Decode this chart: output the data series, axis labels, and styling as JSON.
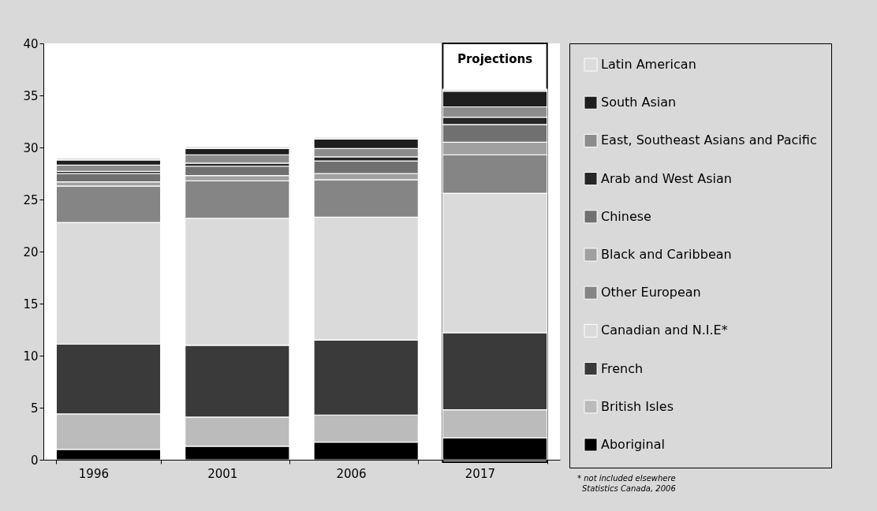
{
  "chart_data": {
    "type": "bar",
    "stacked": true,
    "categories": [
      "1996",
      "2001",
      "2006",
      "2017"
    ],
    "series": [
      {
        "name": "Aboriginal",
        "color": "#000000",
        "values": [
          1.0,
          1.3,
          1.7,
          2.1
        ]
      },
      {
        "name": "British Isles",
        "color": "#bbbbbb",
        "values": [
          3.4,
          2.8,
          2.6,
          2.7
        ]
      },
      {
        "name": "French",
        "color": "#3a3a3a",
        "values": [
          6.7,
          6.9,
          7.2,
          7.4
        ]
      },
      {
        "name": "Canadian and N.I.E*",
        "color": "#dadada",
        "values": [
          11.7,
          12.2,
          11.8,
          13.4
        ]
      },
      {
        "name": "Other European",
        "color": "#858585",
        "values": [
          3.5,
          3.6,
          3.6,
          3.7
        ]
      },
      {
        "name": "Black and Caribbean",
        "color": "#a0a0a0",
        "values": [
          0.4,
          0.5,
          0.6,
          1.2
        ]
      },
      {
        "name": "Chinese",
        "color": "#707070",
        "values": [
          0.8,
          0.9,
          1.2,
          1.7
        ]
      },
      {
        "name": "Arab and West Asian",
        "color": "#262626",
        "values": [
          0.2,
          0.3,
          0.4,
          0.7
        ]
      },
      {
        "name": "East, Southeast Asians and Pacific",
        "color": "#8c8c8c",
        "values": [
          0.6,
          0.8,
          0.8,
          1.0
        ]
      },
      {
        "name": "South Asian",
        "color": "#1e1e1e",
        "values": [
          0.5,
          0.6,
          0.9,
          1.5
        ]
      },
      {
        "name": "Latin American",
        "color": "#dcdcdc",
        "values": [
          0.2,
          0.2,
          0.2,
          0.2
        ]
      }
    ],
    "ylim": [
      0,
      40
    ],
    "yticks": [
      0,
      5,
      10,
      15,
      20,
      25,
      30,
      35,
      40
    ],
    "grid": false,
    "legend": "right",
    "bands": [
      {
        "axis": "x",
        "from": "2017",
        "to": "2017",
        "label": "Projections",
        "color": "#000000"
      }
    ],
    "annotations": [
      "* not included elsewhere",
      "Statistics Canada, 2006"
    ]
  }
}
